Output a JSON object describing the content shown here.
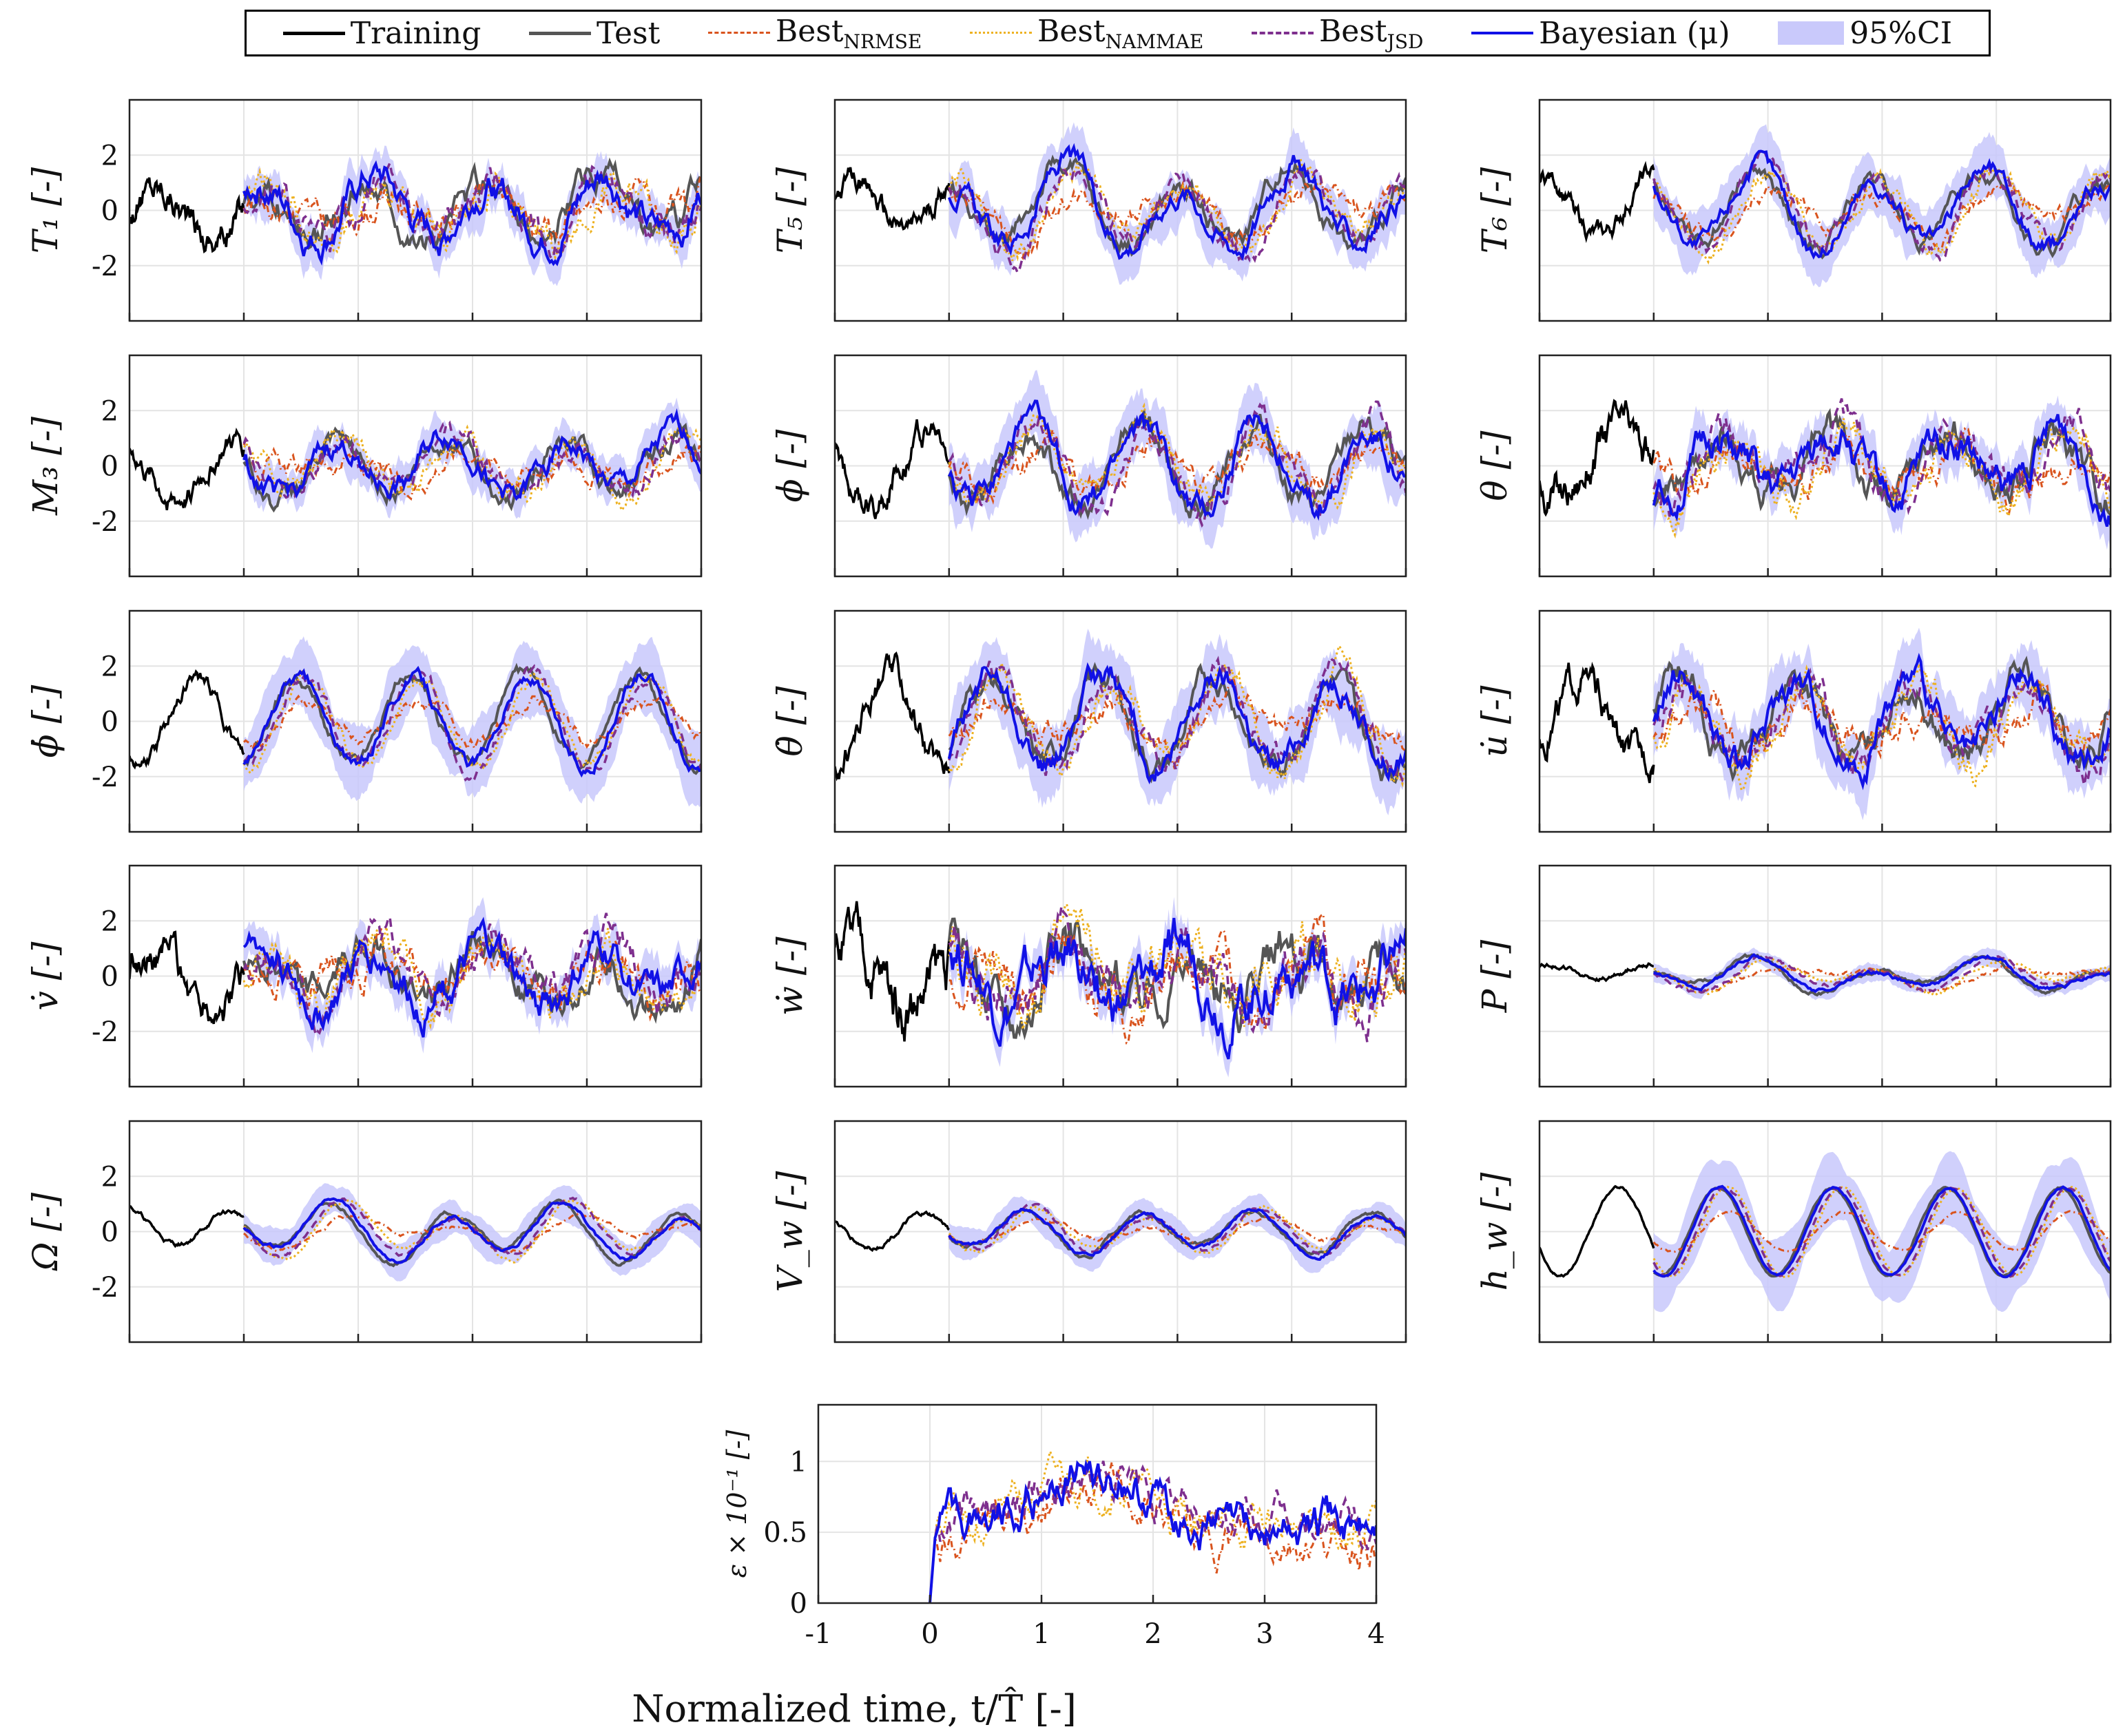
{
  "legend": {
    "training": "Training",
    "test": "Test",
    "best_nrmse": "Best",
    "best_nrmse_sub": "NRMSE",
    "best_nammae": "Best",
    "best_nammae_sub": "NAMMAE",
    "best_jsd": "Best",
    "best_jsd_sub": "JSD",
    "bayesian": "Bayesian (μ)",
    "ci": "95%CI"
  },
  "colors": {
    "training": "#000000",
    "test": "#555555",
    "best_nrmse": "#d9541e",
    "best_nammae": "#edb120",
    "best_jsd": "#7e2f8e",
    "bayesian": "#1111e6",
    "ci": "#c8c8fb"
  },
  "xlabel": "Normalized time, t/T̂ [-]",
  "chart_data": [
    {
      "type": "line",
      "ylabel": "T₁ [-]",
      "ylim": [
        -4,
        4
      ],
      "xlim": [
        -1,
        4
      ],
      "yticks": [
        "2",
        "0",
        "-2"
      ],
      "amp": 1.0,
      "noise": 0.35,
      "trend": 0.2
    },
    {
      "type": "line",
      "ylabel": "T₅ [-]",
      "ylim": [
        -4,
        4
      ],
      "xlim": [
        -1,
        4
      ],
      "yticks": [],
      "amp": 1.2,
      "noise": 0.25,
      "trend": 0.9
    },
    {
      "type": "line",
      "ylabel": "T₆ [-]",
      "ylim": [
        -4,
        4
      ],
      "xlim": [
        -1,
        4
      ],
      "yticks": [],
      "amp": 1.3,
      "noise": 0.2,
      "trend": 0.6
    },
    {
      "type": "line",
      "ylabel": "M₃ [-]",
      "ylim": [
        -4,
        4
      ],
      "xlim": [
        -1,
        4
      ],
      "yticks": [
        "2",
        "0",
        "-2"
      ],
      "amp": 0.9,
      "noise": 0.25,
      "trend": -0.5
    },
    {
      "type": "line",
      "ylabel": "ϕ [-]",
      "ylim": [
        -4,
        4
      ],
      "xlim": [
        -1,
        4
      ],
      "yticks": [],
      "amp": 1.4,
      "noise": 0.3,
      "trend": 0.1
    },
    {
      "type": "line",
      "ylabel": "θ [-]",
      "ylim": [
        -4,
        4
      ],
      "xlim": [
        -1,
        4
      ],
      "yticks": [],
      "amp": 1.1,
      "noise": 0.4,
      "trend": -0.2
    },
    {
      "type": "line",
      "ylabel": "ϕ̇ [-]",
      "ylim": [
        -4,
        4
      ],
      "xlim": [
        -1,
        4
      ],
      "yticks": [
        "2",
        "0",
        "-2"
      ],
      "amp": 1.6,
      "noise": 0.15,
      "trend": 0.0
    },
    {
      "type": "line",
      "ylabel": "θ̇ [-]",
      "ylim": [
        -4,
        4
      ],
      "xlim": [
        -1,
        4
      ],
      "yticks": [],
      "amp": 1.6,
      "noise": 0.3,
      "trend": 0.0
    },
    {
      "type": "line",
      "ylabel": "u̇ [-]",
      "ylim": [
        -4,
        4
      ],
      "xlim": [
        -1,
        4
      ],
      "yticks": [],
      "amp": 1.5,
      "noise": 0.35,
      "trend": 0.0
    },
    {
      "type": "line",
      "ylabel": "v̇ [-]",
      "ylim": [
        -4,
        4
      ],
      "xlim": [
        -1,
        4
      ],
      "yticks": [
        "2",
        "0",
        "-2"
      ],
      "amp": 1.0,
      "noise": 0.4,
      "trend": 0.0
    },
    {
      "type": "line",
      "ylabel": "ẇ [-]",
      "ylim": [
        -4,
        4
      ],
      "xlim": [
        -1,
        4
      ],
      "yticks": [],
      "amp": 0.9,
      "noise": 0.6,
      "trend": 0.0
    },
    {
      "type": "line",
      "ylabel": "P [-]",
      "ylim": [
        -4,
        4
      ],
      "xlim": [
        -1,
        4
      ],
      "yticks": [],
      "amp": 0.4,
      "noise": 0.05,
      "trend": 0.5
    },
    {
      "type": "line",
      "ylabel": "Ω [-]",
      "ylim": [
        -4,
        4
      ],
      "xlim": [
        -1,
        4
      ],
      "yticks": [
        "2",
        "0",
        "-2"
      ],
      "amp": 0.8,
      "noise": 0.05,
      "trend": 0.6
    },
    {
      "type": "line",
      "ylabel": "V_w [-]",
      "ylim": [
        -4,
        4
      ],
      "xlim": [
        -1,
        4
      ],
      "yticks": [],
      "amp": 0.7,
      "noise": 0.05,
      "trend": 0.3
    },
    {
      "type": "line",
      "ylabel": "h_w [-]",
      "ylim": [
        -4,
        4
      ],
      "xlim": [
        -1,
        4
      ],
      "yticks": [],
      "amp": 1.6,
      "noise": 0.03,
      "trend": 0.0
    },
    {
      "type": "line",
      "ylabel": "ε × 10⁻¹ [-]",
      "ylim": [
        0,
        1.4
      ],
      "xlim": [
        -1,
        4
      ],
      "yticks": [
        "1",
        "0.5",
        "0"
      ],
      "xticks": [
        "-1",
        "0",
        "1",
        "2",
        "3",
        "4"
      ],
      "amp": 0.6,
      "noise": 0.12,
      "trend": 0.0
    }
  ]
}
